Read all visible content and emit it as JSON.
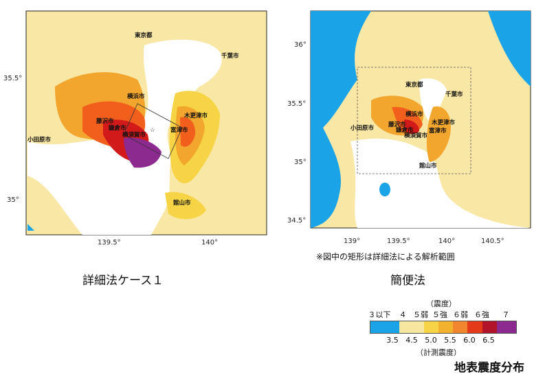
{
  "left_map": {
    "lat_ticks": [
      "35.5°",
      "35°"
    ],
    "lon_ticks": [
      "139.5°",
      "140°"
    ],
    "cities": [
      "東京都",
      "千葉市",
      "横浜市",
      "木更津市",
      "藤沢市",
      "鎌倉市",
      "横須賀市",
      "富津市",
      "小田原市",
      "館山市"
    ],
    "caption": "詳細法ケース１"
  },
  "right_map": {
    "lat_ticks": [
      "36°",
      "35.5°",
      "35°",
      "34.5°"
    ],
    "lon_ticks": [
      "139°",
      "139.5°",
      "140°",
      "140.5°"
    ],
    "cities": [
      "東京都",
      "千葉市",
      "横浜市",
      "木更津市",
      "藤沢市",
      "鎌倉市",
      "横須賀市",
      "富津市",
      "小田原市",
      "館山市"
    ],
    "caption": "簡便法"
  },
  "note": "※図中の矩形は詳細法による解析範囲",
  "legend": {
    "top_title": "（震度）",
    "intensity_labels": [
      "３以下",
      "４",
      "５弱",
      "５強",
      "６弱",
      "６強",
      "７"
    ],
    "value_labels": [
      "3.5",
      "4.5",
      "5.0",
      "5.5",
      "6.0",
      "6.5"
    ],
    "bottom_title": "（計測震度）",
    "colors": [
      "#1aa3e6",
      "#f5e6a0",
      "#f7d445",
      "#f2a62e",
      "#f25e1c",
      "#d21a1a",
      "#8b0f2e",
      "#8d2a8f"
    ]
  },
  "figure_title": "地表震度分布"
}
